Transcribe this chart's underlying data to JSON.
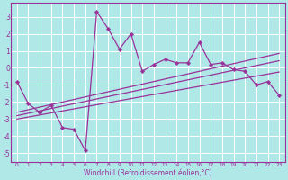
{
  "xlabel": "Windchill (Refroidissement éolien,°C)",
  "bg_color": "#b0e8e8",
  "grid_color": "#ffffff",
  "line_color": "#993399",
  "x_data": [
    0,
    1,
    2,
    3,
    4,
    5,
    6,
    7,
    8,
    9,
    10,
    11,
    12,
    13,
    14,
    15,
    16,
    17,
    18,
    19,
    20,
    21,
    22,
    23
  ],
  "y_main": [
    -0.8,
    -2.1,
    -2.6,
    -2.2,
    -3.5,
    -3.6,
    -4.85,
    3.3,
    2.3,
    1.1,
    2.0,
    -0.2,
    0.2,
    0.5,
    0.3,
    0.3,
    1.5,
    0.2,
    0.3,
    -0.1,
    -0.2,
    -1.0,
    -0.8,
    -1.6
  ],
  "y_trend1": [
    -2.6,
    -2.45,
    -2.3,
    -2.15,
    -2.0,
    -1.85,
    -1.7,
    -1.55,
    -1.4,
    -1.25,
    -1.1,
    -0.95,
    -0.8,
    -0.65,
    -0.5,
    -0.35,
    -0.2,
    -0.05,
    0.1,
    0.25,
    0.4,
    0.55,
    0.7,
    0.85
  ],
  "y_trend2": [
    -2.8,
    -2.66,
    -2.52,
    -2.38,
    -2.24,
    -2.1,
    -1.96,
    -1.82,
    -1.68,
    -1.54,
    -1.4,
    -1.26,
    -1.12,
    -0.98,
    -0.84,
    -0.7,
    -0.56,
    -0.42,
    -0.28,
    -0.14,
    0.0,
    0.14,
    0.28,
    0.42
  ],
  "y_trend3": [
    -3.0,
    -2.88,
    -2.76,
    -2.64,
    -2.52,
    -2.4,
    -2.28,
    -2.16,
    -2.04,
    -1.92,
    -1.8,
    -1.68,
    -1.56,
    -1.44,
    -1.32,
    -1.2,
    -1.08,
    -0.96,
    -0.84,
    -0.72,
    -0.6,
    -0.48,
    -0.36,
    -0.24
  ],
  "ylim": [
    -5.5,
    3.8
  ],
  "xlim": [
    -0.5,
    23.5
  ],
  "yticks": [
    -5,
    -4,
    -3,
    -2,
    -1,
    0,
    1,
    2,
    3
  ],
  "xticks": [
    0,
    1,
    2,
    3,
    4,
    5,
    6,
    7,
    8,
    9,
    10,
    11,
    12,
    13,
    14,
    15,
    16,
    17,
    18,
    19,
    20,
    21,
    22,
    23
  ]
}
